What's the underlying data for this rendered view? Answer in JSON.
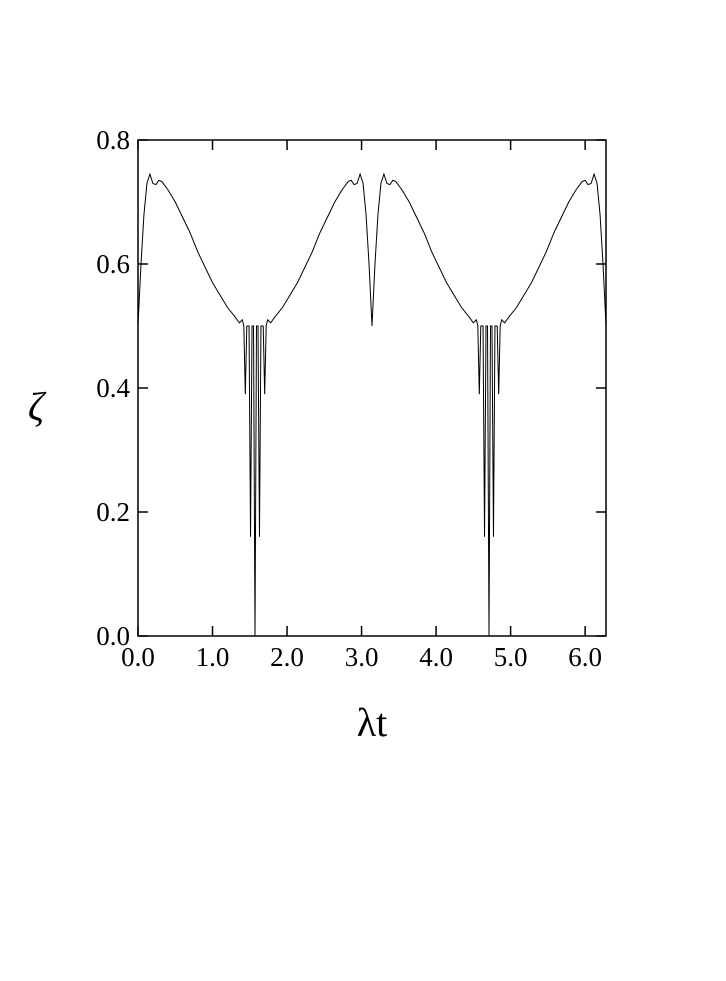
{
  "chart_data": {
    "type": "line",
    "x_label": "λt",
    "y_label": "ζ",
    "xlim": [
      0,
      6.28
    ],
    "ylim": [
      0,
      0.8
    ],
    "xticks": [
      {
        "value": 0,
        "label": "0.0"
      },
      {
        "value": 1,
        "label": "1.0"
      },
      {
        "value": 2,
        "label": "2.0"
      },
      {
        "value": 3,
        "label": "3.0"
      },
      {
        "value": 4,
        "label": "4.0"
      },
      {
        "value": 5,
        "label": "5.0"
      },
      {
        "value": 6,
        "label": "6.0"
      }
    ],
    "yticks": [
      {
        "value": 0,
        "label": "0.0"
      },
      0.2,
      0.4,
      0.6,
      0.8
    ],
    "x": [
      0,
      0.04,
      0.08,
      0.12,
      0.16,
      0.2,
      0.24,
      0.28,
      0.32,
      0.4,
      0.5,
      0.6,
      0.7,
      0.8,
      0.9,
      1.0,
      1.1,
      1.2,
      1.3,
      1.36,
      1.4,
      1.42,
      1.44,
      1.46,
      1.49,
      1.51,
      1.53,
      1.55,
      1.57,
      1.59,
      1.61,
      1.63,
      1.65,
      1.68,
      1.7,
      1.72,
      1.74,
      1.78,
      1.84,
      1.94,
      2.04,
      2.14,
      2.24,
      2.34,
      2.44,
      2.54,
      2.64,
      2.74,
      2.82,
      2.86,
      2.9,
      2.94,
      2.98,
      3.02,
      3.06,
      3.1,
      3.14,
      3.18,
      3.22,
      3.26,
      3.3,
      3.34,
      3.38,
      3.42,
      3.46,
      3.54,
      3.64,
      3.74,
      3.84,
      3.94,
      4.04,
      4.14,
      4.24,
      4.34,
      4.44,
      4.5,
      4.54,
      4.56,
      4.58,
      4.6,
      4.63,
      4.65,
      4.67,
      4.69,
      4.71,
      4.73,
      4.75,
      4.77,
      4.79,
      4.82,
      4.84,
      4.86,
      4.88,
      4.92,
      4.98,
      5.08,
      5.18,
      5.28,
      5.38,
      5.48,
      5.58,
      5.68,
      5.78,
      5.88,
      5.96,
      6.0,
      6.04,
      6.08,
      6.12,
      6.16,
      6.2,
      6.24,
      6.28
    ],
    "series": [
      {
        "color": "#000000",
        "values": [
          0.5,
          0.6,
          0.68,
          0.73,
          0.745,
          0.73,
          0.728,
          0.735,
          0.733,
          0.72,
          0.7,
          0.675,
          0.65,
          0.62,
          0.595,
          0.57,
          0.55,
          0.53,
          0.515,
          0.505,
          0.51,
          0.5,
          0.39,
          0.5,
          0.5,
          0.16,
          0.5,
          0.5,
          0.0,
          0.5,
          0.5,
          0.16,
          0.5,
          0.5,
          0.39,
          0.5,
          0.51,
          0.505,
          0.515,
          0.53,
          0.55,
          0.57,
          0.595,
          0.62,
          0.65,
          0.675,
          0.7,
          0.72,
          0.733,
          0.735,
          0.728,
          0.73,
          0.745,
          0.73,
          0.68,
          0.6,
          0.5,
          0.6,
          0.68,
          0.73,
          0.745,
          0.73,
          0.728,
          0.735,
          0.733,
          0.72,
          0.7,
          0.675,
          0.65,
          0.62,
          0.595,
          0.57,
          0.55,
          0.53,
          0.515,
          0.505,
          0.51,
          0.5,
          0.39,
          0.5,
          0.5,
          0.16,
          0.5,
          0.5,
          0.0,
          0.5,
          0.5,
          0.16,
          0.5,
          0.5,
          0.39,
          0.5,
          0.51,
          0.505,
          0.515,
          0.53,
          0.55,
          0.57,
          0.595,
          0.62,
          0.65,
          0.675,
          0.7,
          0.72,
          0.733,
          0.735,
          0.728,
          0.73,
          0.745,
          0.73,
          0.68,
          0.6,
          0.5
        ]
      }
    ]
  }
}
